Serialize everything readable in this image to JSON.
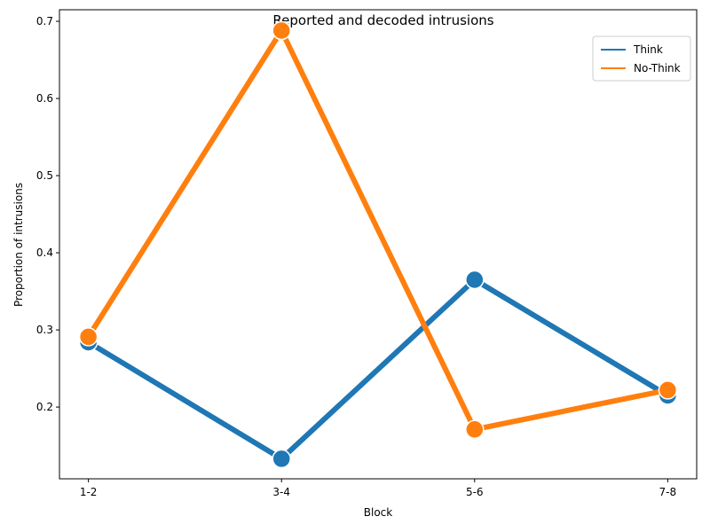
{
  "chart_data": {
    "type": "line",
    "title": "Reported and decoded intrusions",
    "xlabel": "Block",
    "ylabel": "Proportion of intrusions",
    "categories": [
      "1-2",
      "3-4",
      "5-6",
      "7-8"
    ],
    "ylim": [
      0.107,
      0.715
    ],
    "yticks": [
      0.2,
      0.3,
      0.4,
      0.5,
      0.6,
      0.7
    ],
    "ytick_labels": [
      "0.2",
      "0.3",
      "0.4",
      "0.5",
      "0.6",
      "0.7"
    ],
    "grid": false,
    "legend_position": "top-right",
    "series": [
      {
        "name": "Think",
        "color": "#1f77b4",
        "values": [
          0.284,
          0.133,
          0.365,
          0.215
        ]
      },
      {
        "name": "No-Think",
        "color": "#ff7f0e",
        "values": [
          0.291,
          0.688,
          0.171,
          0.222
        ]
      }
    ]
  }
}
